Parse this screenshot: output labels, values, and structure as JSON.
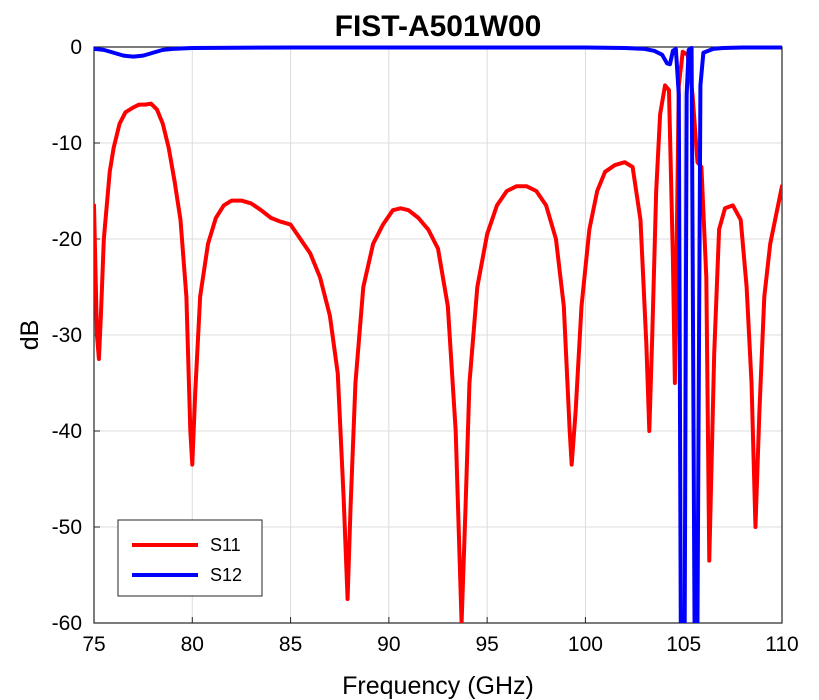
{
  "chart_data": {
    "type": "line",
    "title": "FIST-A501W00",
    "xlabel": "Frequency (GHz)",
    "ylabel": "dB",
    "xlim": [
      75,
      110
    ],
    "ylim": [
      -60,
      0
    ],
    "xticks": [
      75,
      80,
      85,
      90,
      95,
      100,
      105,
      110
    ],
    "yticks": [
      0,
      -10,
      -20,
      -30,
      -40,
      -50,
      -60
    ],
    "grid": true,
    "legend_position": "bottom-left",
    "series": [
      {
        "name": "S11",
        "color": "#ff0000",
        "points": [
          [
            75.0,
            -16.5
          ],
          [
            75.15,
            -30.0
          ],
          [
            75.25,
            -32.5
          ],
          [
            75.35,
            -28.0
          ],
          [
            75.5,
            -20.0
          ],
          [
            75.8,
            -13.0
          ],
          [
            76.0,
            -10.5
          ],
          [
            76.3,
            -8.0
          ],
          [
            76.6,
            -6.8
          ],
          [
            77.0,
            -6.3
          ],
          [
            77.3,
            -6.0
          ],
          [
            77.6,
            -6.0
          ],
          [
            77.9,
            -5.9
          ],
          [
            78.2,
            -6.5
          ],
          [
            78.5,
            -8.0
          ],
          [
            78.8,
            -10.5
          ],
          [
            79.1,
            -14.0
          ],
          [
            79.4,
            -18.0
          ],
          [
            79.7,
            -26.0
          ],
          [
            79.9,
            -40.0
          ],
          [
            80.0,
            -43.5
          ],
          [
            80.15,
            -36.0
          ],
          [
            80.4,
            -26.0
          ],
          [
            80.8,
            -20.5
          ],
          [
            81.2,
            -17.8
          ],
          [
            81.6,
            -16.5
          ],
          [
            82.0,
            -16.0
          ],
          [
            82.5,
            -16.0
          ],
          [
            83.0,
            -16.3
          ],
          [
            83.5,
            -17.0
          ],
          [
            84.0,
            -17.8
          ],
          [
            84.5,
            -18.2
          ],
          [
            85.0,
            -18.5
          ],
          [
            85.5,
            -20.0
          ],
          [
            86.0,
            -21.5
          ],
          [
            86.5,
            -24.0
          ],
          [
            87.0,
            -28.0
          ],
          [
            87.4,
            -34.0
          ],
          [
            87.7,
            -47.0
          ],
          [
            87.9,
            -57.5
          ],
          [
            88.05,
            -48.0
          ],
          [
            88.3,
            -35.0
          ],
          [
            88.7,
            -25.0
          ],
          [
            89.2,
            -20.5
          ],
          [
            89.7,
            -18.5
          ],
          [
            90.2,
            -17.0
          ],
          [
            90.6,
            -16.8
          ],
          [
            91.0,
            -17.0
          ],
          [
            91.5,
            -17.8
          ],
          [
            92.0,
            -19.0
          ],
          [
            92.5,
            -21.0
          ],
          [
            93.0,
            -27.0
          ],
          [
            93.4,
            -40.0
          ],
          [
            93.7,
            -60.0
          ],
          [
            93.9,
            -48.0
          ],
          [
            94.1,
            -35.0
          ],
          [
            94.5,
            -25.0
          ],
          [
            95.0,
            -19.5
          ],
          [
            95.5,
            -16.5
          ],
          [
            96.0,
            -15.0
          ],
          [
            96.5,
            -14.5
          ],
          [
            97.0,
            -14.5
          ],
          [
            97.5,
            -15.0
          ],
          [
            98.0,
            -16.5
          ],
          [
            98.5,
            -20.0
          ],
          [
            98.9,
            -27.0
          ],
          [
            99.2,
            -40.0
          ],
          [
            99.3,
            -43.5
          ],
          [
            99.5,
            -38.0
          ],
          [
            99.8,
            -27.0
          ],
          [
            100.2,
            -19.0
          ],
          [
            100.6,
            -15.0
          ],
          [
            101.0,
            -13.0
          ],
          [
            101.5,
            -12.3
          ],
          [
            102.0,
            -12.0
          ],
          [
            102.4,
            -12.5
          ],
          [
            102.8,
            -18.0
          ],
          [
            103.1,
            -31.0
          ],
          [
            103.25,
            -40.0
          ],
          [
            103.4,
            -30.0
          ],
          [
            103.6,
            -15.0
          ],
          [
            103.8,
            -7.0
          ],
          [
            104.05,
            -4.0
          ],
          [
            104.25,
            -4.5
          ],
          [
            104.45,
            -22.0
          ],
          [
            104.55,
            -35.0
          ],
          [
            104.75,
            -4.0
          ],
          [
            104.95,
            -0.5
          ],
          [
            105.2,
            -0.8
          ],
          [
            105.45,
            -5.0
          ],
          [
            105.7,
            -12.0
          ],
          [
            105.9,
            -12.5
          ],
          [
            106.15,
            -24.0
          ],
          [
            106.3,
            -53.5
          ],
          [
            106.55,
            -32.0
          ],
          [
            106.8,
            -19.0
          ],
          [
            107.1,
            -16.8
          ],
          [
            107.5,
            -16.5
          ],
          [
            107.9,
            -18.0
          ],
          [
            108.2,
            -25.0
          ],
          [
            108.45,
            -35.0
          ],
          [
            108.65,
            -50.0
          ],
          [
            108.85,
            -38.0
          ],
          [
            109.1,
            -26.0
          ],
          [
            109.4,
            -20.5
          ],
          [
            109.7,
            -17.5
          ],
          [
            110.0,
            -14.5
          ]
        ]
      },
      {
        "name": "S12",
        "color": "#0000ff",
        "points": [
          [
            75.0,
            -0.2
          ],
          [
            75.5,
            -0.3
          ],
          [
            76.0,
            -0.6
          ],
          [
            76.5,
            -0.9
          ],
          [
            77.0,
            -1.0
          ],
          [
            77.5,
            -0.9
          ],
          [
            78.0,
            -0.6
          ],
          [
            78.5,
            -0.3
          ],
          [
            79.0,
            -0.2
          ],
          [
            80.0,
            -0.1
          ],
          [
            85.0,
            -0.05
          ],
          [
            90.0,
            -0.05
          ],
          [
            95.0,
            -0.05
          ],
          [
            100.0,
            -0.05
          ],
          [
            102.0,
            -0.1
          ],
          [
            103.0,
            -0.2
          ],
          [
            103.5,
            -0.4
          ],
          [
            103.9,
            -0.8
          ],
          [
            104.15,
            -1.7
          ],
          [
            104.3,
            -1.8
          ],
          [
            104.45,
            -0.4
          ],
          [
            104.6,
            -0.2
          ],
          [
            104.75,
            -5.0
          ],
          [
            104.85,
            -60.0
          ],
          [
            105.05,
            -60.0
          ],
          [
            105.15,
            -5.0
          ],
          [
            105.25,
            -0.3
          ],
          [
            105.4,
            -0.1
          ],
          [
            105.55,
            -60.0
          ],
          [
            105.7,
            -60.0
          ],
          [
            105.85,
            -4.0
          ],
          [
            106.0,
            -0.6
          ],
          [
            106.5,
            -0.2
          ],
          [
            107.0,
            -0.1
          ],
          [
            108.0,
            -0.05
          ],
          [
            109.0,
            -0.05
          ],
          [
            110.0,
            -0.05
          ]
        ]
      }
    ]
  }
}
